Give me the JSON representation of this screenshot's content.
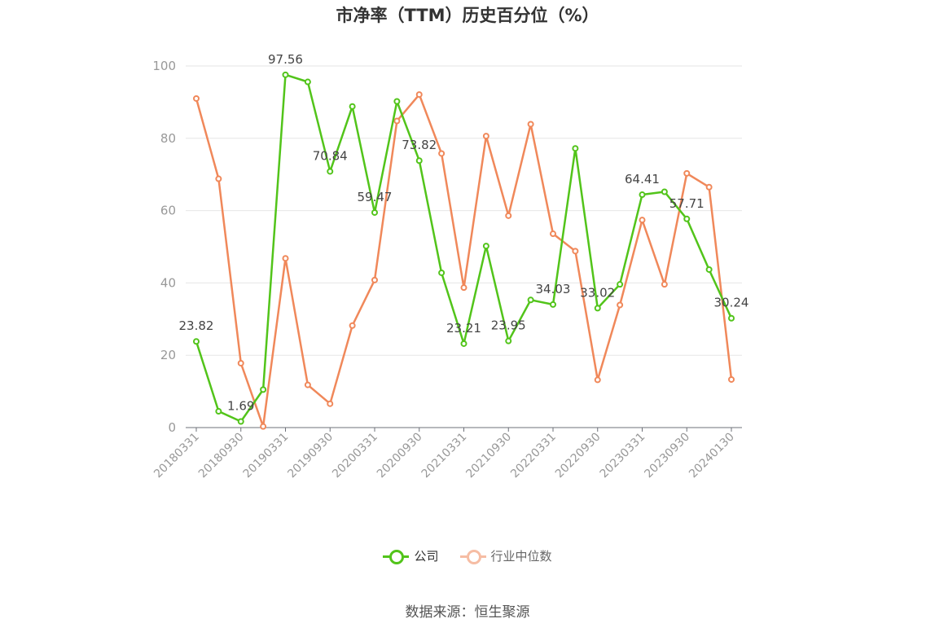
{
  "title": "市净率（TTM）历史百分位（%）",
  "source": "数据来源：恒生聚源",
  "colors": {
    "company": "#52c41a",
    "industry": "#f0885a",
    "grid": "#e6e6e6",
    "axis": "#6e7079",
    "label": "#999999"
  },
  "chart_data": {
    "type": "line",
    "title": "市净率（TTM）历史百分位（%）",
    "xlabel": "",
    "ylabel": "",
    "ylim": [
      0,
      100
    ],
    "yticks": [
      0,
      20,
      40,
      60,
      80,
      100
    ],
    "grid": true,
    "legend_position": "bottom-center",
    "x": [
      "20180331",
      "20180630",
      "20180930",
      "20181231",
      "20190331",
      "20190630",
      "20190930",
      "20191231",
      "20200331",
      "20200630",
      "20200930",
      "20201231",
      "20210331",
      "20210630",
      "20210930",
      "20211231",
      "20220331",
      "20220630",
      "20220930",
      "20221231",
      "20230331",
      "20230630",
      "20230930",
      "20231231",
      "20240130"
    ],
    "x_tick_labels": [
      "20180331",
      "20180930",
      "20190331",
      "20190930",
      "20200331",
      "20200930",
      "20210331",
      "20210930",
      "20220331",
      "20220930",
      "20230331",
      "20230930",
      "20240130"
    ],
    "series": [
      {
        "name": "公司",
        "values": [
          23.82,
          4.5,
          1.69,
          10.5,
          97.56,
          95.6,
          70.84,
          88.8,
          59.47,
          90.2,
          73.82,
          42.8,
          23.21,
          50.2,
          23.95,
          35.3,
          34.03,
          77.2,
          33.02,
          39.6,
          64.41,
          65.2,
          57.71,
          43.7,
          30.24
        ],
        "labeled_points": [
          {
            "index": 0,
            "text": "23.82"
          },
          {
            "index": 2,
            "text": "1.69"
          },
          {
            "index": 4,
            "text": "97.56"
          },
          {
            "index": 6,
            "text": "70.84"
          },
          {
            "index": 8,
            "text": "59.47"
          },
          {
            "index": 10,
            "text": "73.82"
          },
          {
            "index": 12,
            "text": "23.21"
          },
          {
            "index": 14,
            "text": "23.95"
          },
          {
            "index": 16,
            "text": "34.03"
          },
          {
            "index": 18,
            "text": "33.02"
          },
          {
            "index": 20,
            "text": "64.41"
          },
          {
            "index": 22,
            "text": "57.71"
          },
          {
            "index": 24,
            "text": "30.24"
          }
        ]
      },
      {
        "name": "行业中位数",
        "values": [
          91.0,
          68.8,
          17.8,
          0.3,
          46.8,
          11.8,
          6.6,
          28.2,
          40.8,
          84.8,
          92.1,
          75.8,
          38.7,
          80.6,
          58.6,
          83.9,
          53.6,
          48.8,
          13.2,
          33.9,
          57.4,
          39.6,
          70.3,
          66.5,
          13.3
        ]
      }
    ]
  },
  "legend": {
    "company_label": "公司",
    "industry_label": "行业中位数"
  }
}
